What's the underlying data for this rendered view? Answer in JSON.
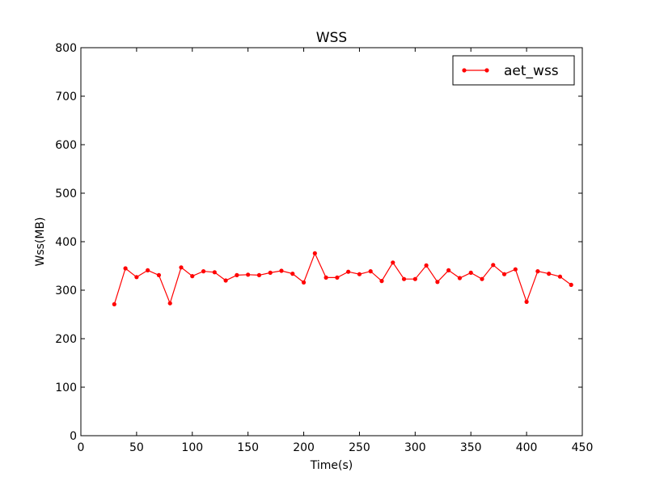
{
  "chart_data": {
    "type": "line",
    "title": "WSS",
    "xlabel": "Time(s)",
    "ylabel": "Wss(MB)",
    "xlim": [
      0,
      450
    ],
    "ylim": [
      0,
      800
    ],
    "xticks": [
      0,
      50,
      100,
      150,
      200,
      250,
      300,
      350,
      400,
      450
    ],
    "yticks": [
      0,
      100,
      200,
      300,
      400,
      500,
      600,
      700,
      800
    ],
    "grid": false,
    "legend_position": "top-right",
    "series": [
      {
        "name": "aet_wss",
        "color": "#ff0000",
        "marker": "dot",
        "x": [
          30,
          40,
          50,
          60,
          70,
          80,
          90,
          100,
          110,
          120,
          130,
          140,
          150,
          160,
          170,
          180,
          190,
          200,
          210,
          220,
          230,
          240,
          250,
          260,
          270,
          280,
          290,
          300,
          310,
          320,
          330,
          340,
          350,
          360,
          370,
          380,
          390,
          400,
          410,
          420,
          430,
          440
        ],
        "y": [
          271,
          345,
          327,
          341,
          331,
          273,
          347,
          329,
          339,
          337,
          320,
          331,
          332,
          331,
          336,
          340,
          334,
          316,
          376,
          326,
          326,
          338,
          333,
          339,
          319,
          357,
          323,
          323,
          351,
          317,
          341,
          325,
          336,
          323,
          352,
          333,
          343,
          276,
          339,
          334,
          328,
          311
        ]
      }
    ]
  }
}
